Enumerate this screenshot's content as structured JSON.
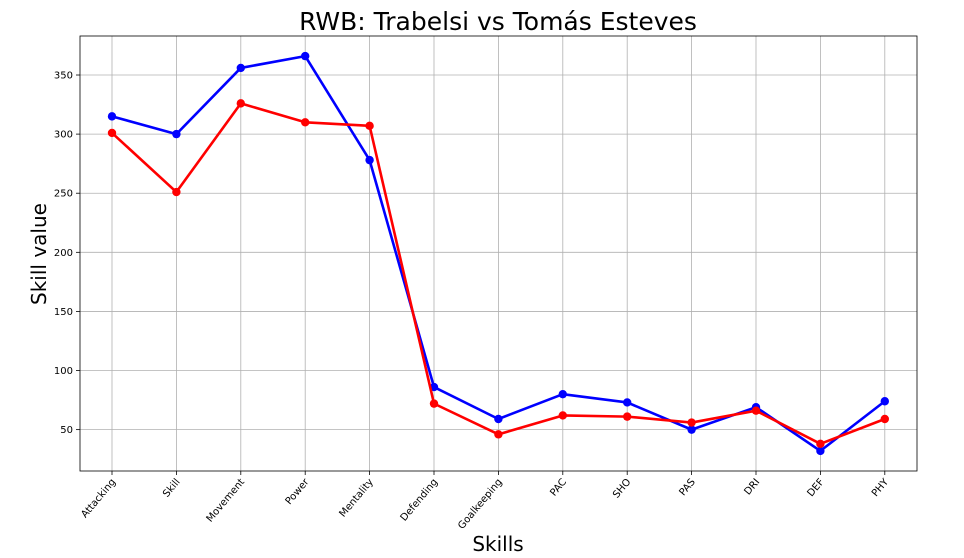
{
  "chart_data": {
    "type": "line",
    "title": "RWB: Trabelsi vs Tomás Esteves",
    "xlabel": "Skills",
    "ylabel": "Skill value",
    "categories": [
      "Attacking",
      "Skill",
      "Movement",
      "Power",
      "Mentality",
      "Defending",
      "Goalkeeping",
      "PAC",
      "SHO",
      "PAS",
      "DRI",
      "DEF",
      "PHY"
    ],
    "series": [
      {
        "color": "#0000ff",
        "values": [
          315,
          300,
          356,
          366,
          278,
          86,
          59,
          80,
          73,
          50,
          69,
          32,
          74
        ]
      },
      {
        "color": "#ff0000",
        "values": [
          301,
          251,
          326,
          310,
          307,
          72,
          46,
          62,
          61,
          56,
          66,
          38,
          59
        ]
      }
    ],
    "yticks": [
      50,
      100,
      150,
      200,
      250,
      300,
      350
    ],
    "ylim": [
      15,
      383
    ],
    "grid": true
  }
}
